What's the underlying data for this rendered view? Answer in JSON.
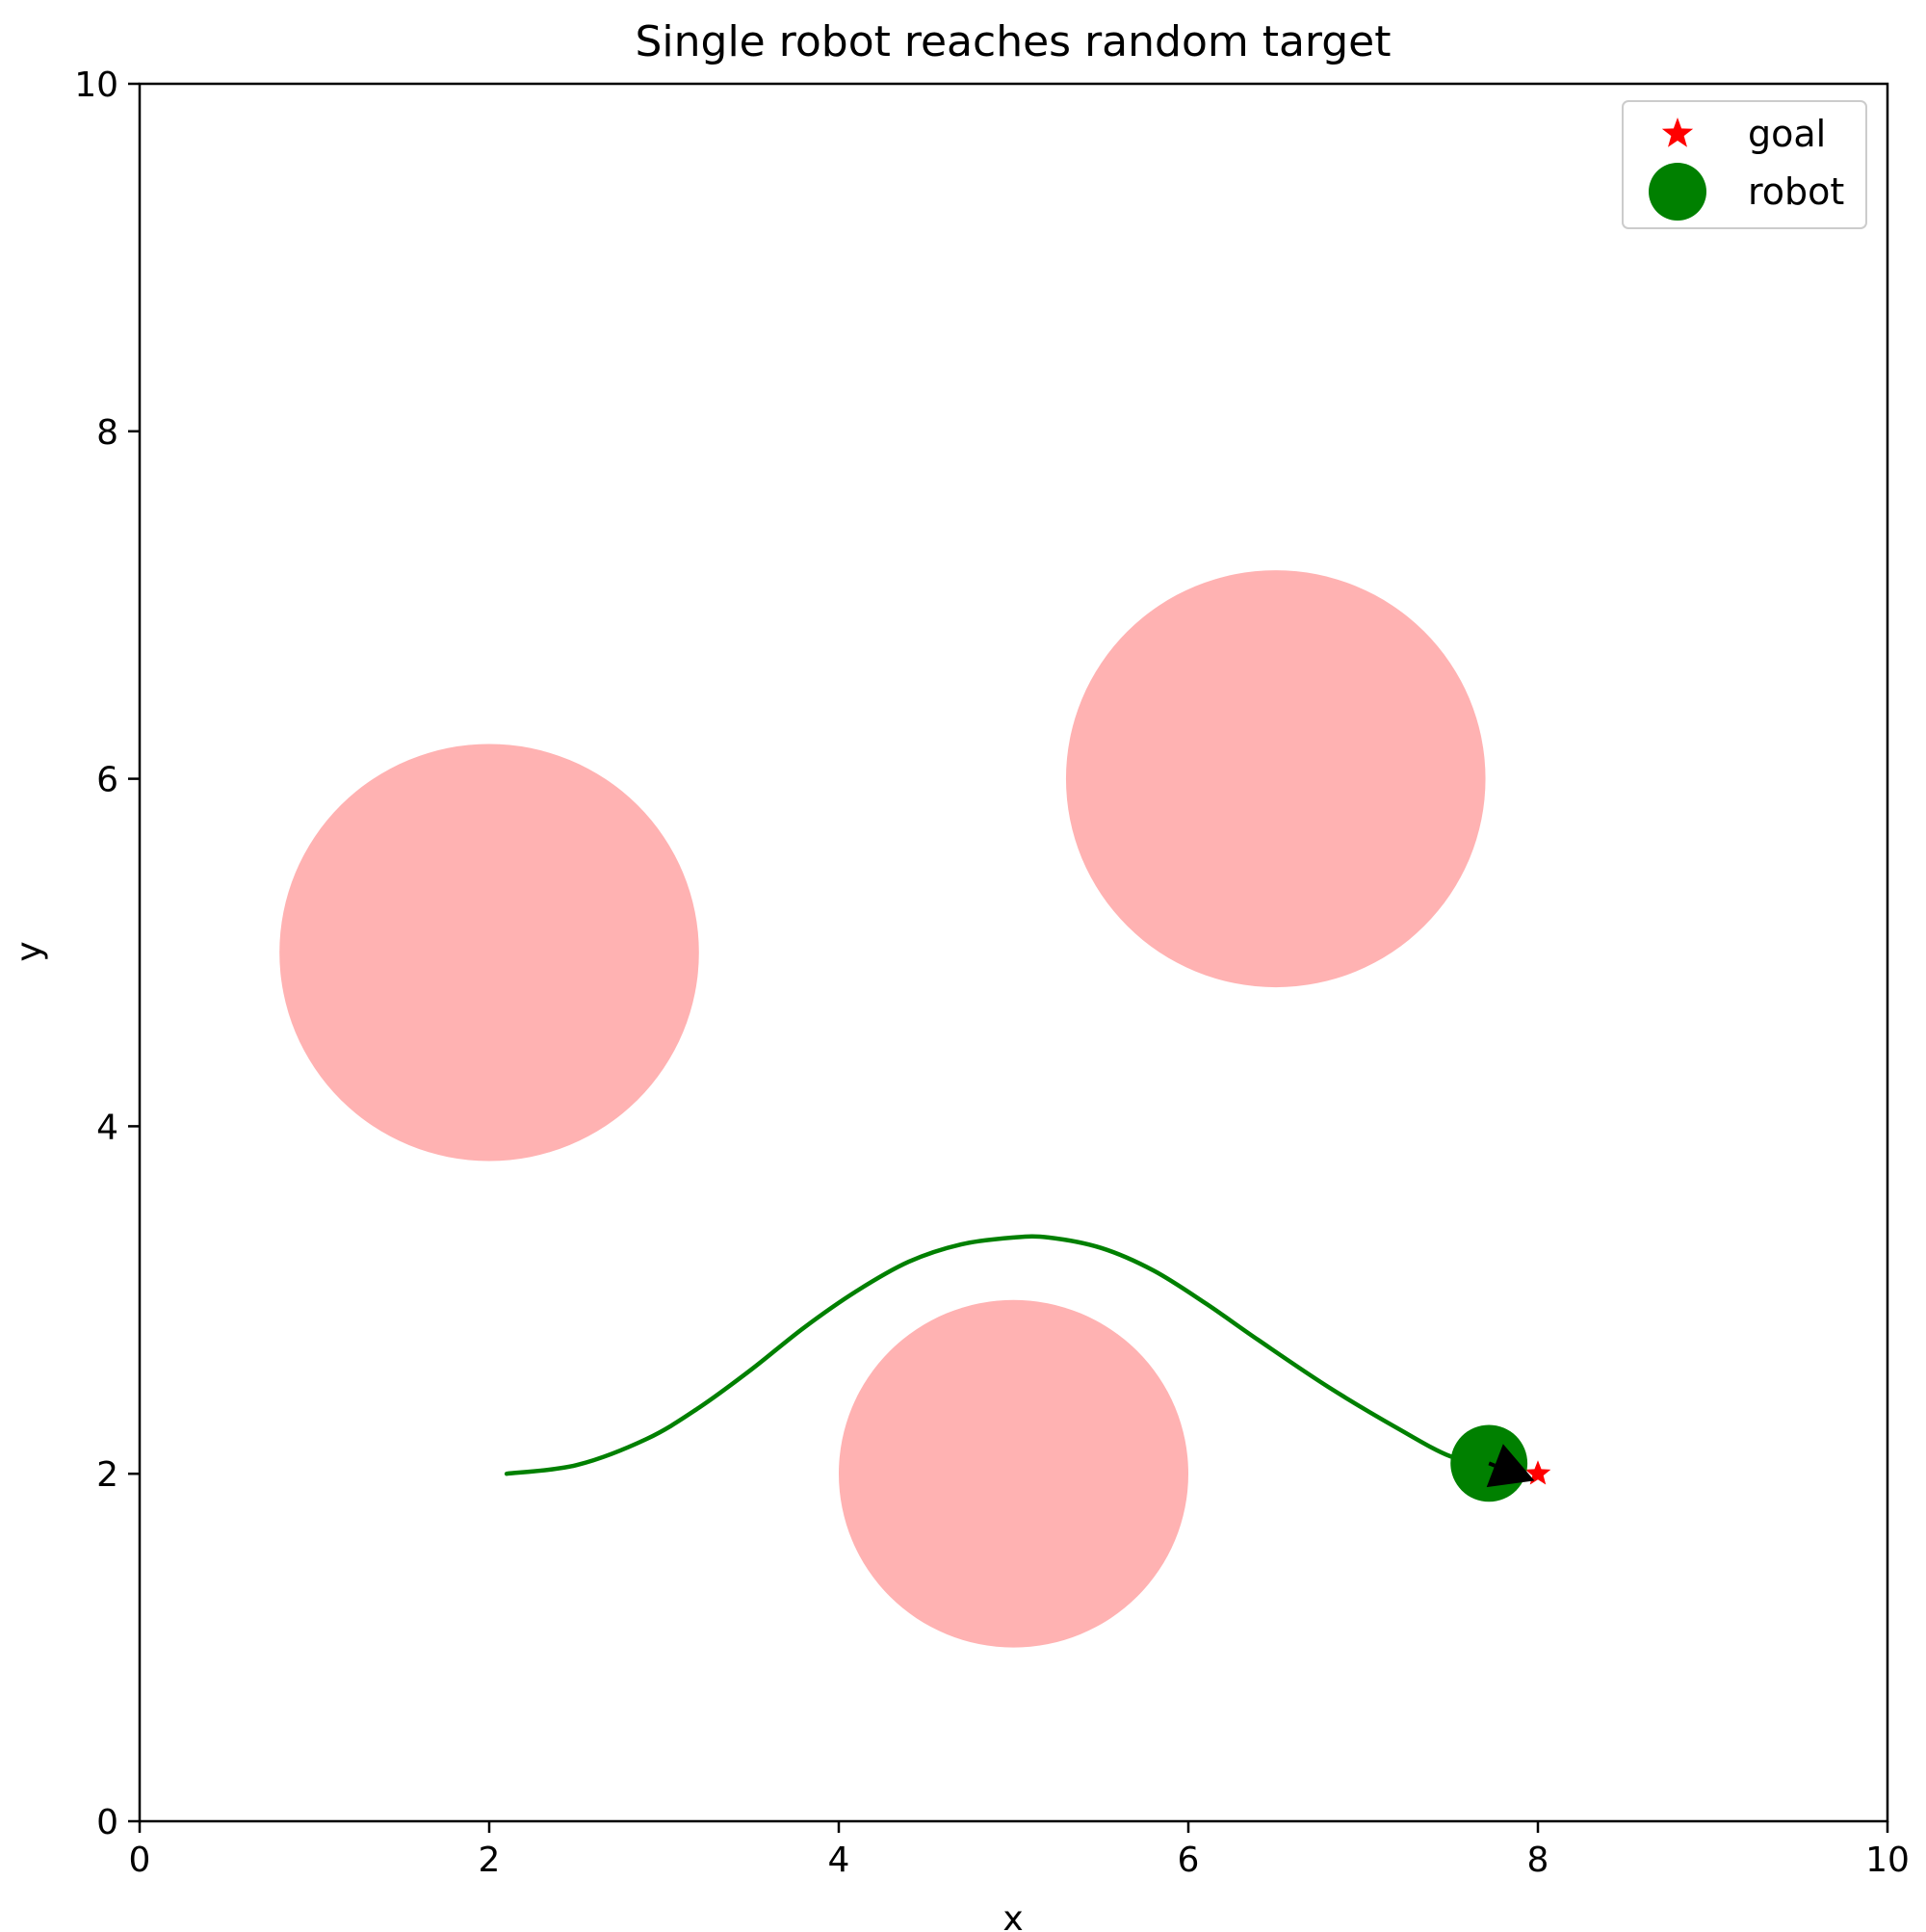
{
  "chart_data": {
    "type": "scatter",
    "title": "Single robot reaches random target",
    "xlabel": "x",
    "ylabel": "y",
    "xlim": [
      0,
      10
    ],
    "ylim": [
      0,
      10
    ],
    "xticks": [
      "0",
      "2",
      "4",
      "6",
      "8",
      "10"
    ],
    "yticks": [
      "0",
      "2",
      "4",
      "6",
      "8",
      "10"
    ],
    "grid": false,
    "legend_position": "top-right",
    "legend": [
      {
        "label": "goal",
        "marker": "star",
        "color": "#ff0000"
      },
      {
        "label": "robot",
        "marker": "circle",
        "color": "#008000"
      }
    ],
    "obstacles": [
      {
        "cx": 2.0,
        "cy": 5.0,
        "r": 1.2,
        "color": "#ffb2b2"
      },
      {
        "cx": 6.5,
        "cy": 6.0,
        "r": 1.2,
        "color": "#ffb2b2"
      },
      {
        "cx": 5.0,
        "cy": 2.0,
        "r": 1.0,
        "color": "#ffb2b2"
      }
    ],
    "goal": {
      "x": 8.0,
      "y": 2.0,
      "color": "#ff0000"
    },
    "robot": {
      "x": 7.72,
      "y": 2.06,
      "r": 0.22,
      "color": "#008000"
    },
    "heading_arrow": {
      "from": [
        7.72,
        2.06
      ],
      "to": [
        7.98,
        1.96
      ],
      "color": "#000000"
    },
    "trajectory": {
      "color": "#008000",
      "x": [
        2.1,
        2.5,
        2.9,
        3.2,
        3.5,
        3.8,
        4.1,
        4.4,
        4.7,
        5.0,
        5.2,
        5.5,
        5.8,
        6.1,
        6.4,
        6.8,
        7.2,
        7.5,
        7.72
      ],
      "y": [
        2.0,
        2.05,
        2.2,
        2.38,
        2.6,
        2.84,
        3.05,
        3.22,
        3.32,
        3.36,
        3.36,
        3.3,
        3.17,
        2.98,
        2.77,
        2.5,
        2.26,
        2.1,
        2.06
      ]
    }
  }
}
